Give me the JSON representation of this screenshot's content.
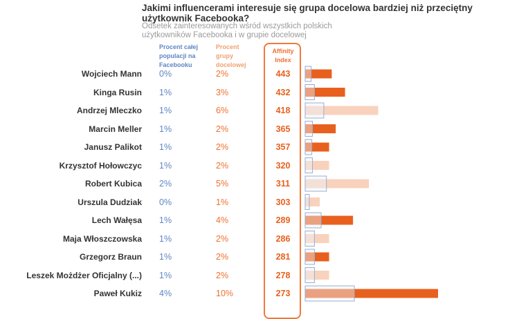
{
  "chart_data": {
    "type": "bar",
    "title": "Jakimi influencerami interesuje się grupa docelowa bardziej niż przeciętny użytkownik Facebooka?",
    "subtitle": "Odsetek zainteresowanych wśród wszystkich polskich użytkowników Facebooka i w grupie docelowej",
    "headers": {
      "population": "Procent całej populacji na Facebooku",
      "group": "Procent grupy docelowej",
      "affinity": "Affinity Index"
    },
    "categories": [
      "Wojciech Mann",
      "Kinga Rusin",
      "Andrzej Mleczko",
      "Marcin Meller",
      "Janusz Palikot",
      "Krzysztof Hołowczyc",
      "Robert Kubica",
      "Urszula Dudziak",
      "Lech Wałęsa",
      "Maja Włoszczowska",
      "Grzegorz Braun",
      "Leszek Możdżer Oficjalny (...)",
      "Paweł Kukiz"
    ],
    "population_labels": [
      "0%",
      "1%",
      "1%",
      "1%",
      "1%",
      "1%",
      "2%",
      "0%",
      "1%",
      "1%",
      "1%",
      "1%",
      "4%"
    ],
    "group_labels": [
      "2%",
      "3%",
      "6%",
      "2%",
      "2%",
      "2%",
      "5%",
      "1%",
      "4%",
      "2%",
      "2%",
      "2%",
      "10%"
    ],
    "affinity_index": [
      443,
      432,
      418,
      365,
      357,
      320,
      311,
      303,
      289,
      286,
      281,
      278,
      273
    ],
    "population_values": [
      0.45,
      0.7,
      1.4,
      0.55,
      0.5,
      0.55,
      1.6,
      0.3,
      1.2,
      0.7,
      0.7,
      0.7,
      3.7
    ],
    "group_values": [
      2.0,
      3.0,
      5.5,
      2.3,
      1.8,
      1.8,
      4.8,
      1.1,
      3.6,
      1.8,
      1.8,
      1.8,
      10.0
    ],
    "highlighted": [
      true,
      true,
      false,
      true,
      true,
      false,
      false,
      false,
      true,
      false,
      true,
      false,
      true
    ],
    "colors": {
      "highlight": "#e8601e",
      "muted": "#f8d2bc",
      "population_fill": "#eef2f9",
      "population_stroke": "#9aaed0",
      "affinity_box": "#f0783c"
    }
  }
}
